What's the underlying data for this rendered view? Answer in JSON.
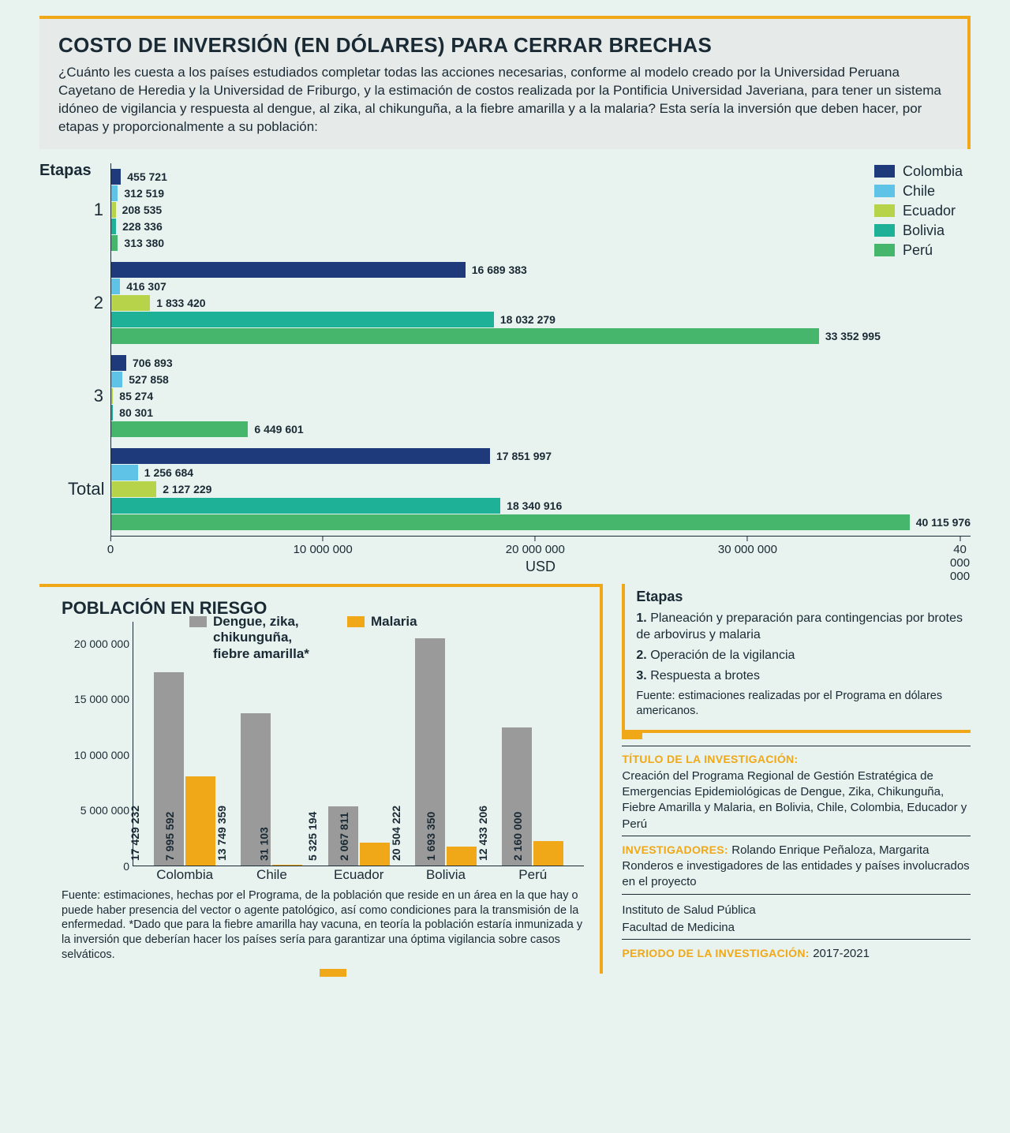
{
  "header": {
    "title": "COSTO DE INVERSIÓN (EN DÓLARES) PARA CERRAR BRECHAS",
    "description": "¿Cuánto les cuesta a los países estudiados completar todas las acciones necesarias, conforme al modelo creado por la Universidad Peruana Cayetano de Heredia y la Universidad de Friburgo, y la estimación de costos realizada por la Pontificia Universidad Javeriana, para tener un sistema idóneo de vigilancia y respuesta al dengue, al zika, al chikunguña, a la fiebre amarilla y a la malaria? Esta sería la inversión que deben hacer, por etapas y proporcionalmente a su población:"
  },
  "main_chart": {
    "type": "grouped-horizontal-bar",
    "axis_label": "Etapas",
    "x_axis_title": "USD",
    "x_max": 40500000,
    "x_ticks": [
      {
        "value": 0,
        "label": "0"
      },
      {
        "value": 10000000,
        "label": "10 000 000"
      },
      {
        "value": 20000000,
        "label": "20 000 000"
      },
      {
        "value": 30000000,
        "label": "30 000 000"
      },
      {
        "value": 40000000,
        "label": "40 000 000"
      }
    ],
    "countries": [
      {
        "name": "Colombia",
        "color": "#1f3a7a"
      },
      {
        "name": "Chile",
        "color": "#5fc3e8"
      },
      {
        "name": "Ecuador",
        "color": "#b7d349"
      },
      {
        "name": "Bolivia",
        "color": "#1fb098"
      },
      {
        "name": "Perú",
        "color": "#45b66b"
      }
    ],
    "groups": [
      {
        "label": "1",
        "values": [
          {
            "value": 455721,
            "label": "455 721"
          },
          {
            "value": 312519,
            "label": "312 519"
          },
          {
            "value": 208535,
            "label": "208 535"
          },
          {
            "value": 228336,
            "label": "228 336"
          },
          {
            "value": 313380,
            "label": "313 380"
          }
        ]
      },
      {
        "label": "2",
        "values": [
          {
            "value": 16689383,
            "label": "16 689 383"
          },
          {
            "value": 416307,
            "label": "416 307"
          },
          {
            "value": 1833420,
            "label": "1 833 420"
          },
          {
            "value": 18032279,
            "label": "18 032 279"
          },
          {
            "value": 33352995,
            "label": "33 352 995"
          }
        ]
      },
      {
        "label": "3",
        "values": [
          {
            "value": 706893,
            "label": "706 893"
          },
          {
            "value": 527858,
            "label": "527 858"
          },
          {
            "value": 85274,
            "label": "85 274"
          },
          {
            "value": 80301,
            "label": "80 301"
          },
          {
            "value": 6449601,
            "label": "6 449 601"
          }
        ]
      },
      {
        "label": "Total",
        "values": [
          {
            "value": 17851997,
            "label": "17 851 997"
          },
          {
            "value": 1256684,
            "label": "1 256 684"
          },
          {
            "value": 2127229,
            "label": "2 127 229"
          },
          {
            "value": 18340916,
            "label": "18 340 916"
          },
          {
            "value": 40115976,
            "label": "40 115 976"
          }
        ]
      }
    ]
  },
  "population_chart": {
    "type": "grouped-vertical-bar",
    "title": "POBLACIÓN EN RIESGO",
    "y_max": 22000000,
    "y_ticks": [
      {
        "value": 0,
        "label": "0"
      },
      {
        "value": 5000000,
        "label": "5 000 000"
      },
      {
        "value": 10000000,
        "label": "10 000 000"
      },
      {
        "value": 15000000,
        "label": "15 000 000"
      },
      {
        "value": 20000000,
        "label": "20 000 000"
      }
    ],
    "series": [
      {
        "name": "Dengue, zika, chikunguña, fiebre amarilla*",
        "color": "#9a9a9a"
      },
      {
        "name": "Malaria",
        "color": "#f0a818"
      }
    ],
    "categories": [
      {
        "name": "Colombia",
        "values": [
          {
            "value": 17429232,
            "label": "17 429 232"
          },
          {
            "value": 7995592,
            "label": "7 995 592"
          }
        ]
      },
      {
        "name": "Chile",
        "values": [
          {
            "value": 13749359,
            "label": "13 749 359"
          },
          {
            "value": 31103,
            "label": "31 103"
          }
        ]
      },
      {
        "name": "Ecuador",
        "values": [
          {
            "value": 5325194,
            "label": "5 325 194"
          },
          {
            "value": 2067811,
            "label": "2 067 811"
          }
        ]
      },
      {
        "name": "Bolivia",
        "values": [
          {
            "value": 20504222,
            "label": "20 504 222"
          },
          {
            "value": 1693350,
            "label": "1 693 350"
          }
        ]
      },
      {
        "name": "Perú",
        "values": [
          {
            "value": 12433206,
            "label": "12 433 206"
          },
          {
            "value": 2160000,
            "label": "2 160 000"
          }
        ]
      }
    ],
    "footnote": "Fuente: estimaciones, hechas por el Programa, de la población que reside en un área en la que hay o puede haber presencia del vector o agente patológico, así como condiciones para la transmisión de la enfermedad. *Dado que para la fiebre amarilla hay vacuna, en teoría la población estaría inmunizada y la inversión que deberían hacer los países sería para garantizar una óptima vigilancia sobre casos selváticos."
  },
  "etapas_box": {
    "title": "Etapas",
    "items": [
      {
        "num": "1.",
        "text": "Planeación y preparación para contingencias por brotes de arbovirus y malaria"
      },
      {
        "num": "2.",
        "text": "Operación de la vigilancia"
      },
      {
        "num": "3.",
        "text": "Respuesta a brotes"
      }
    ],
    "fuente": "Fuente: estimaciones realizadas por el Programa en dólares americanos."
  },
  "info": {
    "titulo_label": "TÍTULO DE LA INVESTIGACIÓN:",
    "titulo_text": "Creación del Programa Regional de Gestión Estratégica de Emergencias Epidemiológicas de Dengue, Zika, Chikunguña, Fiebre Amarilla y Malaria, en Bolivia, Chile, Colombia, Educador y Perú",
    "investigadores_label": "INVESTIGADORES:",
    "investigadores_text": "Rolando Enrique Peñaloza, Margarita Ronderos e investigadores de las entidades y países involucrados en el proyecto",
    "instituto_1": "Instituto de Salud Pública",
    "instituto_2": "Facultad de Medicina",
    "periodo_label": "PERIODO DE LA INVESTIGACIÓN:",
    "periodo_text": "2017-2021"
  },
  "colors": {
    "accent": "#f0a818",
    "text": "#1a2a35",
    "background": "#e8f2ee",
    "header_bg": "#e6eae8"
  }
}
